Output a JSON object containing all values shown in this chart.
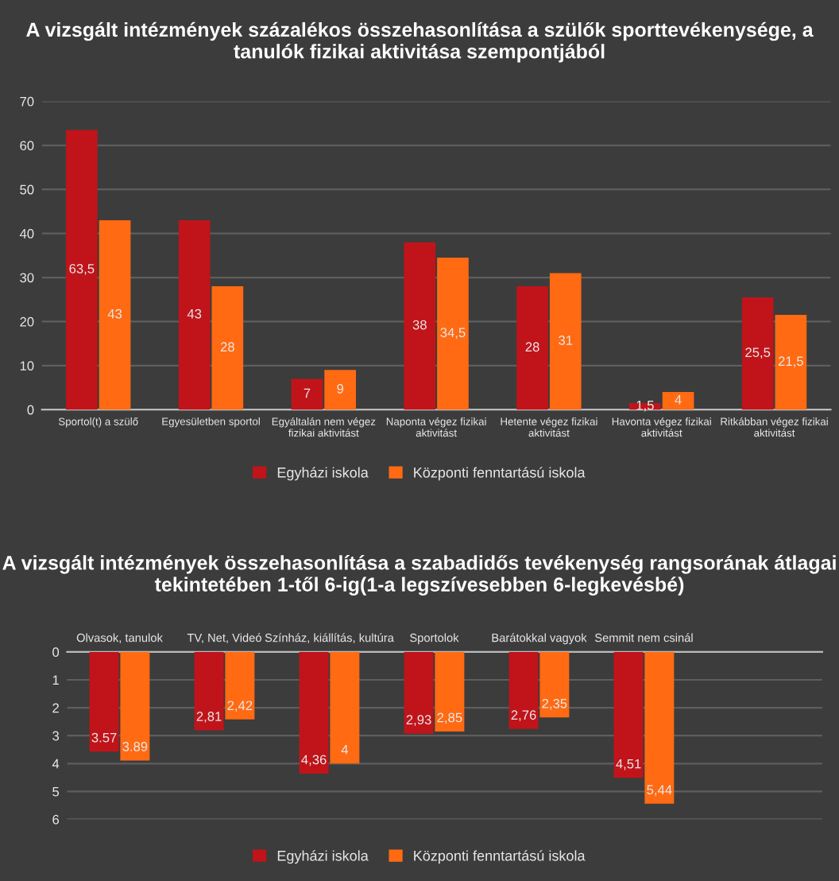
{
  "chart_data": [
    {
      "type": "bar",
      "title": "A vizsgált intézmények százalékos összehasonlítása a szülők sporttevékenysége, a tanulók fizikai aktivitása szempontjából",
      "categories": [
        "Sportol(t) a szülő",
        "Egyesületben sportol",
        "Egyáltalán nem végez\nfizikai aktivitást",
        "Naponta végez fizikai\naktivitást",
        "Hetente végez fizikai\naktivitást",
        "Havonta végez fizikai\naktivitást",
        "Ritkábban végez fizikai\naktivitást"
      ],
      "series": [
        {
          "name": "Egyházi iskola",
          "color": "#c0141a",
          "values": [
            63.5,
            43,
            7,
            38,
            28,
            1.5,
            25.5
          ],
          "value_labels": [
            "63,5",
            "43",
            "7",
            "38",
            "28",
            "1,5",
            "25,5"
          ]
        },
        {
          "name": "Központi fenntartású iskola",
          "color": "#ff6a13",
          "values": [
            43,
            28,
            9,
            34.5,
            31,
            4,
            21.5
          ],
          "value_labels": [
            "43",
            "28",
            "9",
            "34,5",
            "31",
            "4",
            "21,5"
          ]
        }
      ],
      "ylim": [
        0,
        70
      ],
      "yticks": [
        0,
        10,
        20,
        30,
        40,
        50,
        60,
        70
      ],
      "grid": "y",
      "legend": "bottom"
    },
    {
      "type": "bar",
      "title": "A vizsgált intézmények összehasonlítása a szabadidős tevékenység rangsorának átlagai tekintetében 1-től 6-ig(1-a legszívesebben 6-legkevésbé)",
      "categories": [
        "Olvasok, tanulok",
        "TV, Net, Videó",
        "Színház, kiállítás, kultúra",
        "Sportolok",
        "Barátokkal vagyok",
        "Semmit nem csinál"
      ],
      "series": [
        {
          "name": "Egyházi iskola",
          "color": "#c0141a",
          "values": [
            3.57,
            2.81,
            4.36,
            2.93,
            2.76,
            4.51
          ],
          "value_labels": [
            "3.57",
            "2,81",
            "4,36",
            "2,93",
            "2,76",
            "4,51"
          ]
        },
        {
          "name": "Központi fenntartású iskola",
          "color": "#ff6a13",
          "values": [
            3.89,
            2.42,
            4,
            2.85,
            2.35,
            5.44
          ],
          "value_labels": [
            "3.89",
            "2,42",
            "4",
            "2,85",
            "2,35",
            "5,44"
          ]
        }
      ],
      "ylim": [
        6,
        0
      ],
      "yticks": [
        0,
        1,
        2,
        3,
        4,
        5,
        6
      ],
      "grid": "y",
      "legend": "bottom"
    }
  ]
}
